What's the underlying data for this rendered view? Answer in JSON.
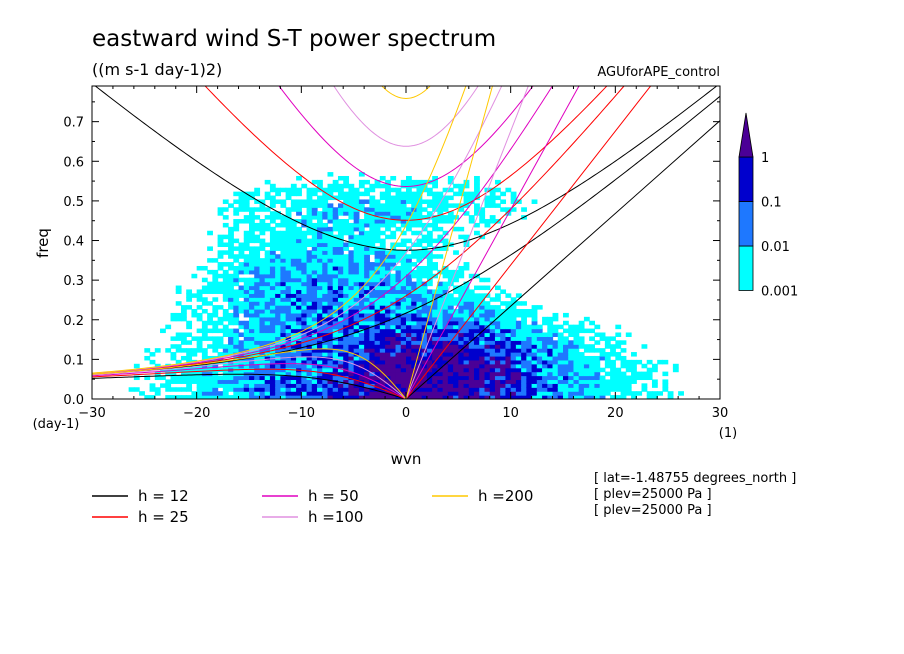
{
  "chart_data": {
    "type": "heatmap",
    "title": "eastward wind S-T power spectrum",
    "subtitle": "((m s-1 day-1)2)",
    "run_label": "AGUforAPE_control",
    "xlabel": "wvn",
    "ylabel": "freq",
    "x_unit": "(1)",
    "y_unit": "(day-1)",
    "xlim": [
      -30,
      30
    ],
    "ylim": [
      0,
      0.79
    ],
    "xticks": [
      -30,
      -20,
      -10,
      0,
      10,
      20,
      30
    ],
    "yticks": [
      0.0,
      0.1,
      0.2,
      0.3,
      0.4,
      0.5,
      0.6,
      0.7
    ],
    "colorbar": {
      "levels": [
        0.001,
        0.01,
        0.1,
        1
      ],
      "level_labels": [
        "0.001",
        "0.01",
        "0.1",
        "1"
      ],
      "colors": [
        "#00ffff",
        "#1e78ff",
        "#0000cd",
        "#4b0096"
      ]
    },
    "dispersion_curves": [
      {
        "label": "h = 12",
        "h": 12,
        "color": "#000000"
      },
      {
        "label": "h = 25",
        "h": 25,
        "color": "#ff0000"
      },
      {
        "label": "h = 50",
        "h": 50,
        "color": "#e000c0"
      },
      {
        "label": "h =100",
        "h": 100,
        "color": "#e090e0"
      },
      {
        "label": "h =200",
        "h": 200,
        "color": "#ffc800"
      }
    ],
    "annotations": [
      "[ lat=-1.48755 degrees_north ]",
      "[ plev=25000 Pa ]",
      "[ plev=25000 Pa ]"
    ]
  }
}
